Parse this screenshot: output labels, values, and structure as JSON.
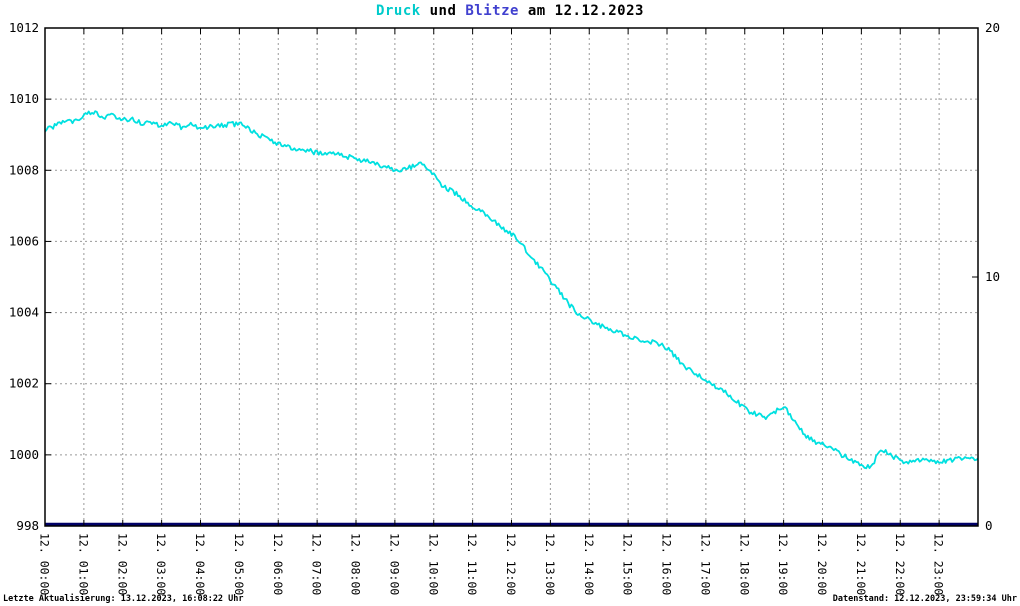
{
  "title": {
    "part1": "Druck",
    "part2": " und ",
    "part3": "Blitze",
    "part4": " am 12.12.2023"
  },
  "footer": {
    "left": "Letzte Aktualisierung: 13.12.2023, 16:08:22 Uhr",
    "right": "Datenstand: 12.12.2023, 23:59:34 Uhr"
  },
  "colors": {
    "background": "#ffffff",
    "title_druck": "#00CBCB",
    "title_blitze": "#4040CF",
    "grid": "#999999",
    "axis": "#000000",
    "druck_line": "#00E0E0",
    "blitze_line": "#000066"
  },
  "chart_data": {
    "type": "line",
    "title": "Druck und Blitze am 12.12.2023",
    "xlabel": "",
    "ylabel_left": "",
    "ylabel_right": "",
    "grid": true,
    "x_range_hours": [
      0,
      24
    ],
    "x_tick_labels": [
      "12. 00:00",
      "12. 01:00",
      "12. 02:00",
      "12. 03:00",
      "12. 04:00",
      "12. 05:00",
      "12. 06:00",
      "12. 07:00",
      "12. 08:00",
      "12. 09:00",
      "12. 10:00",
      "12. 11:00",
      "12. 12:00",
      "12. 13:00",
      "12. 14:00",
      "12. 15:00",
      "12. 16:00",
      "12. 17:00",
      "12. 18:00",
      "12. 19:00",
      "12. 20:00",
      "12. 21:00",
      "12. 22:00",
      "12. 23:00"
    ],
    "y_left": {
      "min": 998,
      "max": 1012,
      "tick_step": 2,
      "ticks": [
        998,
        1000,
        1002,
        1004,
        1006,
        1008,
        1010,
        1012
      ]
    },
    "y_right": {
      "min": 0,
      "max": 20,
      "ticks": [
        0,
        10,
        20
      ]
    },
    "noise_amplitude": 0.07,
    "series": [
      {
        "name": "Druck",
        "axis": "left",
        "color": "#00E0E0",
        "points": [
          [
            0,
            1009.15
          ],
          [
            0.25,
            1009.25
          ],
          [
            0.5,
            1009.35
          ],
          [
            0.75,
            1009.4
          ],
          [
            1,
            1009.55
          ],
          [
            1.25,
            1009.62
          ],
          [
            1.5,
            1009.5
          ],
          [
            1.75,
            1009.55
          ],
          [
            2,
            1009.42
          ],
          [
            2.25,
            1009.45
          ],
          [
            2.5,
            1009.32
          ],
          [
            2.75,
            1009.35
          ],
          [
            3,
            1009.22
          ],
          [
            3.25,
            1009.32
          ],
          [
            3.5,
            1009.22
          ],
          [
            3.75,
            1009.27
          ],
          [
            4,
            1009.2
          ],
          [
            4.25,
            1009.22
          ],
          [
            4.5,
            1009.25
          ],
          [
            4.75,
            1009.28
          ],
          [
            5,
            1009.32
          ],
          [
            5.25,
            1009.18
          ],
          [
            5.5,
            1009
          ],
          [
            5.75,
            1008.88
          ],
          [
            6,
            1008.75
          ],
          [
            6.25,
            1008.65
          ],
          [
            6.5,
            1008.6
          ],
          [
            6.75,
            1008.55
          ],
          [
            7,
            1008.5
          ],
          [
            7.25,
            1008.5
          ],
          [
            7.5,
            1008.45
          ],
          [
            7.75,
            1008.4
          ],
          [
            8,
            1008.3
          ],
          [
            8.25,
            1008.28
          ],
          [
            8.5,
            1008.2
          ],
          [
            8.75,
            1008.1
          ],
          [
            9,
            1008
          ],
          [
            9.25,
            1008.05
          ],
          [
            9.5,
            1008.12
          ],
          [
            9.75,
            1008.2
          ],
          [
            10,
            1007.85
          ],
          [
            10.25,
            1007.55
          ],
          [
            10.5,
            1007.4
          ],
          [
            10.75,
            1007.2
          ],
          [
            11,
            1007
          ],
          [
            11.25,
            1006.85
          ],
          [
            11.5,
            1006.6
          ],
          [
            11.75,
            1006.4
          ],
          [
            12,
            1006.2
          ],
          [
            12.25,
            1005.95
          ],
          [
            12.5,
            1005.55
          ],
          [
            12.75,
            1005.25
          ],
          [
            13,
            1004.9
          ],
          [
            13.25,
            1004.55
          ],
          [
            13.5,
            1004.2
          ],
          [
            13.75,
            1003.95
          ],
          [
            14,
            1003.8
          ],
          [
            14.25,
            1003.65
          ],
          [
            14.5,
            1003.55
          ],
          [
            14.75,
            1003.45
          ],
          [
            15,
            1003.35
          ],
          [
            15.25,
            1003.25
          ],
          [
            15.5,
            1003.2
          ],
          [
            15.75,
            1003.15
          ],
          [
            16,
            1003
          ],
          [
            16.25,
            1002.7
          ],
          [
            16.5,
            1002.45
          ],
          [
            16.75,
            1002.3
          ],
          [
            17,
            1002.05
          ],
          [
            17.25,
            1001.9
          ],
          [
            17.5,
            1001.75
          ],
          [
            17.75,
            1001.55
          ],
          [
            18,
            1001.3
          ],
          [
            18.25,
            1001.15
          ],
          [
            18.5,
            1001.05
          ],
          [
            18.75,
            1001.2
          ],
          [
            19,
            1001.35
          ],
          [
            19.25,
            1001
          ],
          [
            19.5,
            1000.6
          ],
          [
            19.75,
            1000.4
          ],
          [
            20,
            1000.3
          ],
          [
            20.25,
            1000.15
          ],
          [
            20.5,
            1000
          ],
          [
            20.75,
            999.85
          ],
          [
            21,
            999.7
          ],
          [
            21.25,
            999.65
          ],
          [
            21.5,
            1000.15
          ],
          [
            21.75,
            1000
          ],
          [
            22,
            999.85
          ],
          [
            22.25,
            999.8
          ],
          [
            22.5,
            999.85
          ],
          [
            22.75,
            999.8
          ],
          [
            23,
            999.8
          ],
          [
            23.25,
            999.85
          ],
          [
            23.5,
            999.9
          ],
          [
            23.75,
            999.9
          ],
          [
            24,
            999.9
          ]
        ]
      },
      {
        "name": "Blitze",
        "axis": "right",
        "color": "#000066",
        "points": [
          [
            0,
            0
          ],
          [
            24,
            0
          ]
        ]
      }
    ]
  }
}
